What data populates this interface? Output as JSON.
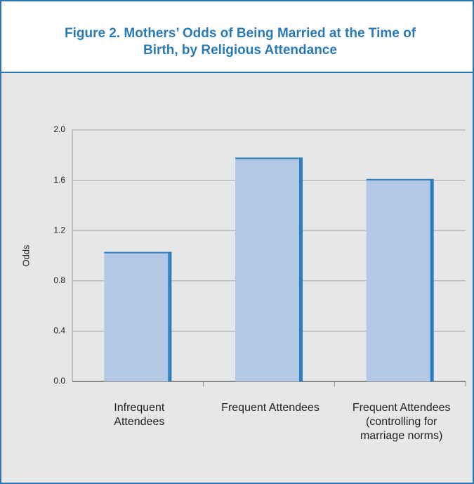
{
  "chart_data": {
    "type": "bar",
    "title": "Figure 2. Mothers’ Odds of Being Married at the Time of Birth, by Religious Attendance",
    "ylabel": "Odds",
    "categories": [
      "Infrequent Attendees",
      "Frequent Attendees",
      "Frequent Attendees (controlling for marriage norms)"
    ],
    "values": [
      1.03,
      1.78,
      1.61
    ],
    "color": "#b3c8e4",
    "edge_color": "#2e7fc0",
    "ylim": [
      0,
      2.0
    ],
    "yticks": [
      {
        "value": 0,
        "label": "0.0"
      },
      {
        "value": 0.4,
        "label": "0.4"
      },
      {
        "value": 0.8,
        "label": "0.8"
      },
      {
        "value": 1.2,
        "label": "1.2"
      },
      {
        "value": 1.6,
        "label": "1.6"
      },
      {
        "value": 2.0,
        "label": "2.0"
      }
    ],
    "grid": true
  }
}
